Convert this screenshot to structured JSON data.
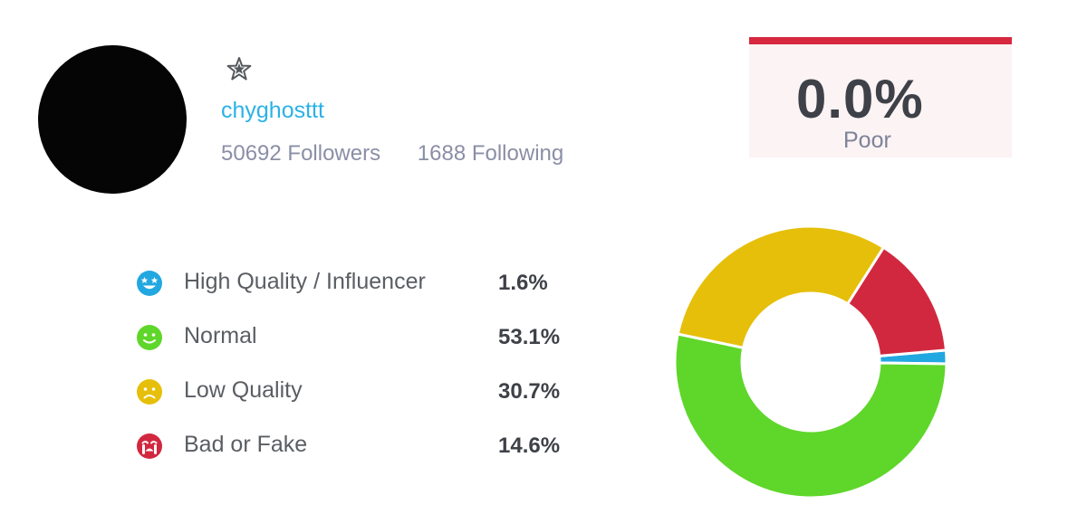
{
  "profile": {
    "username": "chyghosttt",
    "followers": "50692 Followers",
    "following": "1688 Following",
    "badge_icon": "star-badge-icon"
  },
  "score": {
    "value": "0.0%",
    "label": "Poor",
    "accent": "#d6283f"
  },
  "chart_data": {
    "type": "pie",
    "categories": [
      "High Quality / Influencer",
      "Normal",
      "Low Quality",
      "Bad or Fake"
    ],
    "values": [
      1.6,
      53.1,
      30.7,
      14.6
    ],
    "colors": [
      "#22a8e0",
      "#5fd62a",
      "#e6bf0a",
      "#d2283f"
    ],
    "title": "",
    "labels": [
      "1.6%",
      "53.1%",
      "30.7%",
      "14.6%"
    ]
  },
  "legend_icons": [
    "star-eyes-face-icon",
    "smile-face-icon",
    "sad-face-icon",
    "crying-face-icon"
  ]
}
